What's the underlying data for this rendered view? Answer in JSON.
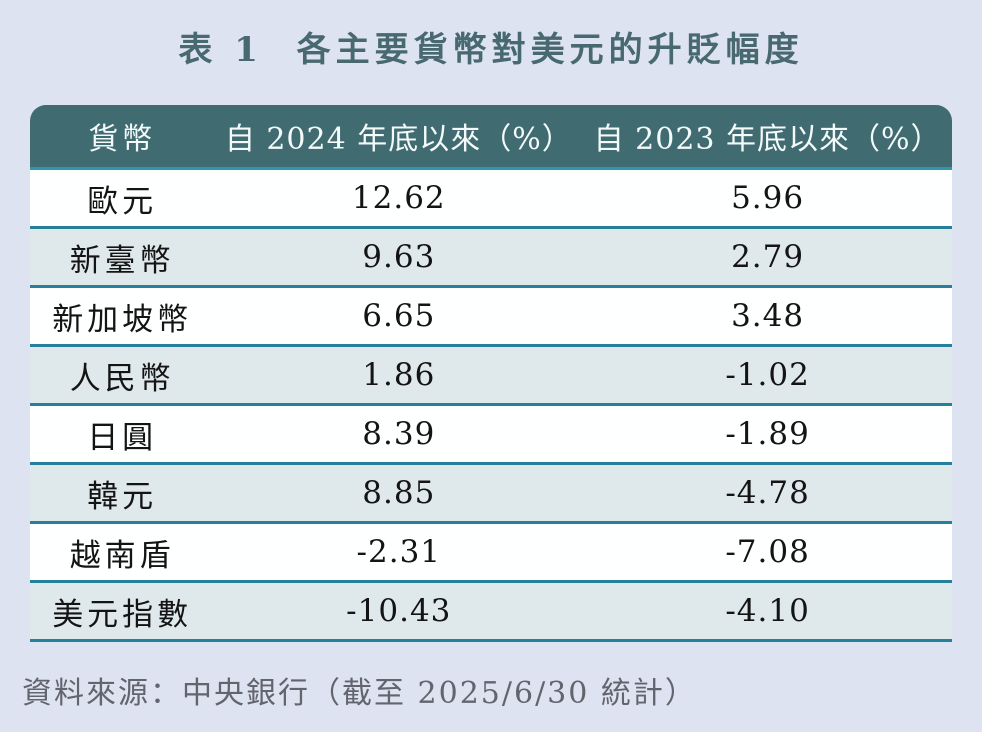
{
  "title": "表 1  各主要貨幣對美元的升貶幅度",
  "table": {
    "headers": {
      "currency": "貨幣",
      "since_2024": "自 2024 年底以來（%）",
      "since_2023": "自 2023 年底以來（%）"
    },
    "rows": [
      {
        "currency": "歐元",
        "since_2024": "12.62",
        "since_2023": "5.96"
      },
      {
        "currency": "新臺幣",
        "since_2024": "9.63",
        "since_2023": "2.79"
      },
      {
        "currency": "新加坡幣",
        "since_2024": "6.65",
        "since_2023": "3.48"
      },
      {
        "currency": "人民幣",
        "since_2024": "1.86",
        "since_2023": "-1.02"
      },
      {
        "currency": "日圓",
        "since_2024": "8.39",
        "since_2023": "-1.89"
      },
      {
        "currency": "韓元",
        "since_2024": "8.85",
        "since_2023": "-4.78"
      },
      {
        "currency": "越南盾",
        "since_2024": "-2.31",
        "since_2023": "-7.08"
      },
      {
        "currency": "美元指數",
        "since_2024": "-10.43",
        "since_2023": "-4.10"
      }
    ]
  },
  "source_note": "資料來源：中央銀行（截至 2025/6/30 統計）",
  "colors": {
    "page_background": "#dee3f1",
    "title_text": "#47696f",
    "header_background": "#3f6b71",
    "header_text": "#f4f9f9",
    "row_white": "#feffff",
    "row_alt": "#dfe9eb",
    "separator_line": "#27809b",
    "header_underline": "#2f96ac",
    "source_text": "#63656e"
  },
  "chart_data": {
    "type": "table",
    "title": "表 1  各主要貨幣對美元的升貶幅度",
    "columns": [
      "貨幣",
      "自 2024 年底以來（%）",
      "自 2023 年底以來（%）"
    ],
    "categories": [
      "歐元",
      "新臺幣",
      "新加坡幣",
      "人民幣",
      "日圓",
      "韓元",
      "越南盾",
      "美元指數"
    ],
    "series": [
      {
        "name": "自 2024 年底以來（%）",
        "values": [
          12.62,
          9.63,
          6.65,
          1.86,
          8.39,
          8.85,
          -2.31,
          -10.43
        ]
      },
      {
        "name": "自 2023 年底以來（%）",
        "values": [
          5.96,
          2.79,
          3.48,
          -1.02,
          -1.89,
          -4.78,
          -7.08,
          -4.1
        ]
      }
    ],
    "footnote": "資料來源：中央銀行（截至 2025/6/30 統計）"
  }
}
